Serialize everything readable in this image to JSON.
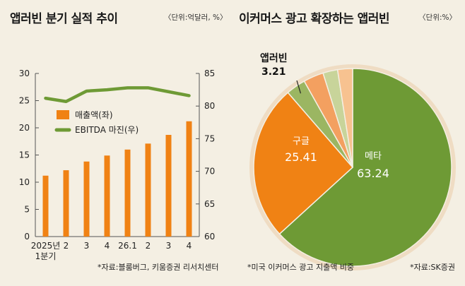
{
  "left": {
    "title": "앱러빈 분기 실적 추이",
    "unit": "〈단위:억달러, %〉",
    "source": "*자료:블룸버그, 키움증권 리서치센터",
    "colors": {
      "bar": "#f08214",
      "line": "#6e9a35"
    }
  },
  "right": {
    "title": "이커머스 광고 확장하는 앱러빈",
    "unit": "〈단위:%〉",
    "note": "*미국 이커머스 광고 지출액 비중",
    "source": "*자료:SK증권"
  },
  "chart_data": [
    {
      "type": "bar",
      "categories": [
        "2025년\n1분기",
        "2",
        "3",
        "4",
        "26.1",
        "2",
        "3",
        "4"
      ],
      "series": [
        {
          "name": "매출액(좌)",
          "type": "bar",
          "axis": "left",
          "values": [
            11.2,
            12.2,
            13.8,
            14.9,
            16.0,
            17.1,
            18.7,
            21.2
          ]
        },
        {
          "name": "EBITDA 마진(우)",
          "type": "line",
          "axis": "right",
          "values": [
            81.2,
            80.7,
            82.3,
            82.5,
            82.8,
            82.8,
            82.2,
            81.6
          ]
        }
      ],
      "ylim_left": [
        0,
        30
      ],
      "yticks_left": [
        0,
        5,
        10,
        15,
        20,
        25,
        30
      ],
      "ylim_right": [
        60,
        85
      ],
      "yticks_right": [
        60,
        65,
        70,
        75,
        80,
        85
      ],
      "legend_position": "upper-left"
    },
    {
      "type": "pie",
      "slices": [
        {
          "label": "메타",
          "value": 63.24,
          "color": "#6e9a35"
        },
        {
          "label": "구글",
          "value": 25.41,
          "color": "#f08214"
        },
        {
          "label": "앱러빈",
          "value": 3.21,
          "color": "#9bb662"
        },
        {
          "label": "",
          "value": 3.3,
          "color": "#f3a060"
        },
        {
          "label": "",
          "value": 2.4,
          "color": "#c8d49a"
        },
        {
          "label": "",
          "value": 2.44,
          "color": "#f7c290"
        }
      ]
    }
  ]
}
